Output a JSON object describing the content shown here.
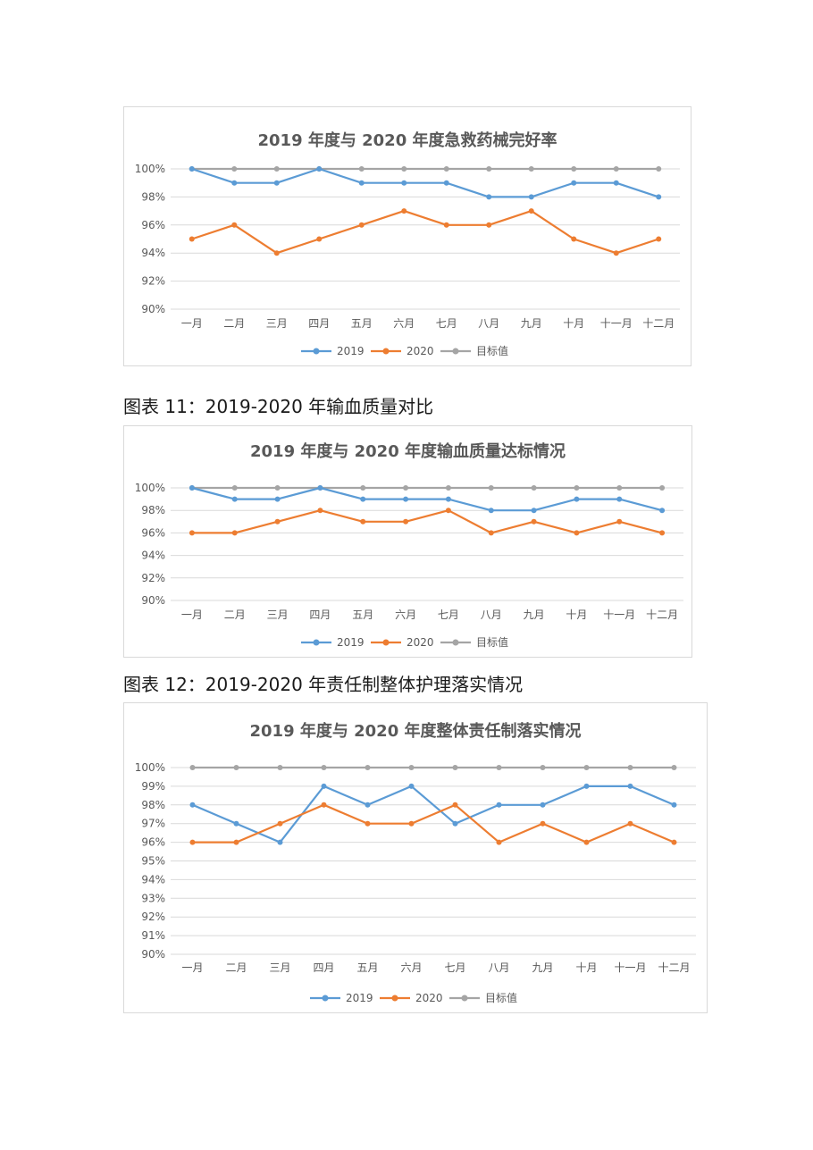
{
  "captions": {
    "fig11": "图表 11：2019-2020 年输血质量对比",
    "fig12": "图表 12：2019-2020 年责任制整体护理落实情况"
  },
  "chart_data": [
    {
      "type": "line",
      "title": "2019 年度与 2020 年度急救药械完好率",
      "categories": [
        "一月",
        "二月",
        "三月",
        "四月",
        "五月",
        "六月",
        "七月",
        "八月",
        "九月",
        "十月",
        "十一月",
        "十二月"
      ],
      "ylim": [
        90,
        100
      ],
      "yticks": [
        90,
        92,
        94,
        96,
        98,
        100
      ],
      "ytick_format": "%",
      "grid": true,
      "legend_position": "bottom",
      "series": [
        {
          "name": "2019",
          "color": "#5b9bd5",
          "values": [
            100,
            99,
            99,
            100,
            99,
            99,
            99,
            98,
            98,
            99,
            99,
            98
          ]
        },
        {
          "name": "2020",
          "color": "#ed7d31",
          "values": [
            95,
            96,
            94,
            95,
            96,
            97,
            96,
            96,
            97,
            95,
            94,
            95
          ]
        },
        {
          "name": "目标值",
          "color": "#a5a5a5",
          "values": [
            100,
            100,
            100,
            100,
            100,
            100,
            100,
            100,
            100,
            100,
            100,
            100
          ]
        }
      ]
    },
    {
      "type": "line",
      "title": "2019 年度与 2020 年度输血质量达标情况",
      "categories": [
        "一月",
        "二月",
        "三月",
        "四月",
        "五月",
        "六月",
        "七月",
        "八月",
        "九月",
        "十月",
        "十一月",
        "十二月"
      ],
      "ylim": [
        90,
        100
      ],
      "yticks": [
        90,
        92,
        94,
        96,
        98,
        100
      ],
      "ytick_format": "%",
      "grid": true,
      "legend_position": "bottom",
      "series": [
        {
          "name": "2019",
          "color": "#5b9bd5",
          "values": [
            100,
            99,
            99,
            100,
            99,
            99,
            99,
            98,
            98,
            99,
            99,
            98
          ]
        },
        {
          "name": "2020",
          "color": "#ed7d31",
          "values": [
            96,
            96,
            97,
            98,
            97,
            97,
            98,
            96,
            97,
            96,
            97,
            96
          ]
        },
        {
          "name": "目标值",
          "color": "#a5a5a5",
          "values": [
            100,
            100,
            100,
            100,
            100,
            100,
            100,
            100,
            100,
            100,
            100,
            100
          ]
        }
      ]
    },
    {
      "type": "line",
      "title": "2019 年度与 2020 年度整体责任制落实情况",
      "categories": [
        "一月",
        "二月",
        "三月",
        "四月",
        "五月",
        "六月",
        "七月",
        "八月",
        "九月",
        "十月",
        "十一月",
        "十二月"
      ],
      "ylim": [
        90,
        100
      ],
      "yticks": [
        90,
        91,
        92,
        93,
        94,
        95,
        96,
        97,
        98,
        99,
        100
      ],
      "ytick_format": "%",
      "grid": true,
      "legend_position": "bottom",
      "series": [
        {
          "name": "2019",
          "color": "#5b9bd5",
          "values": [
            98,
            97,
            96,
            99,
            98,
            99,
            97,
            98,
            98,
            99,
            99,
            98
          ]
        },
        {
          "name": "2020",
          "color": "#ed7d31",
          "values": [
            96,
            96,
            97,
            98,
            97,
            97,
            98,
            96,
            97,
            96,
            97,
            96
          ]
        },
        {
          "name": "目标值",
          "color": "#a5a5a5",
          "values": [
            100,
            100,
            100,
            100,
            100,
            100,
            100,
            100,
            100,
            100,
            100,
            100
          ]
        }
      ]
    }
  ]
}
